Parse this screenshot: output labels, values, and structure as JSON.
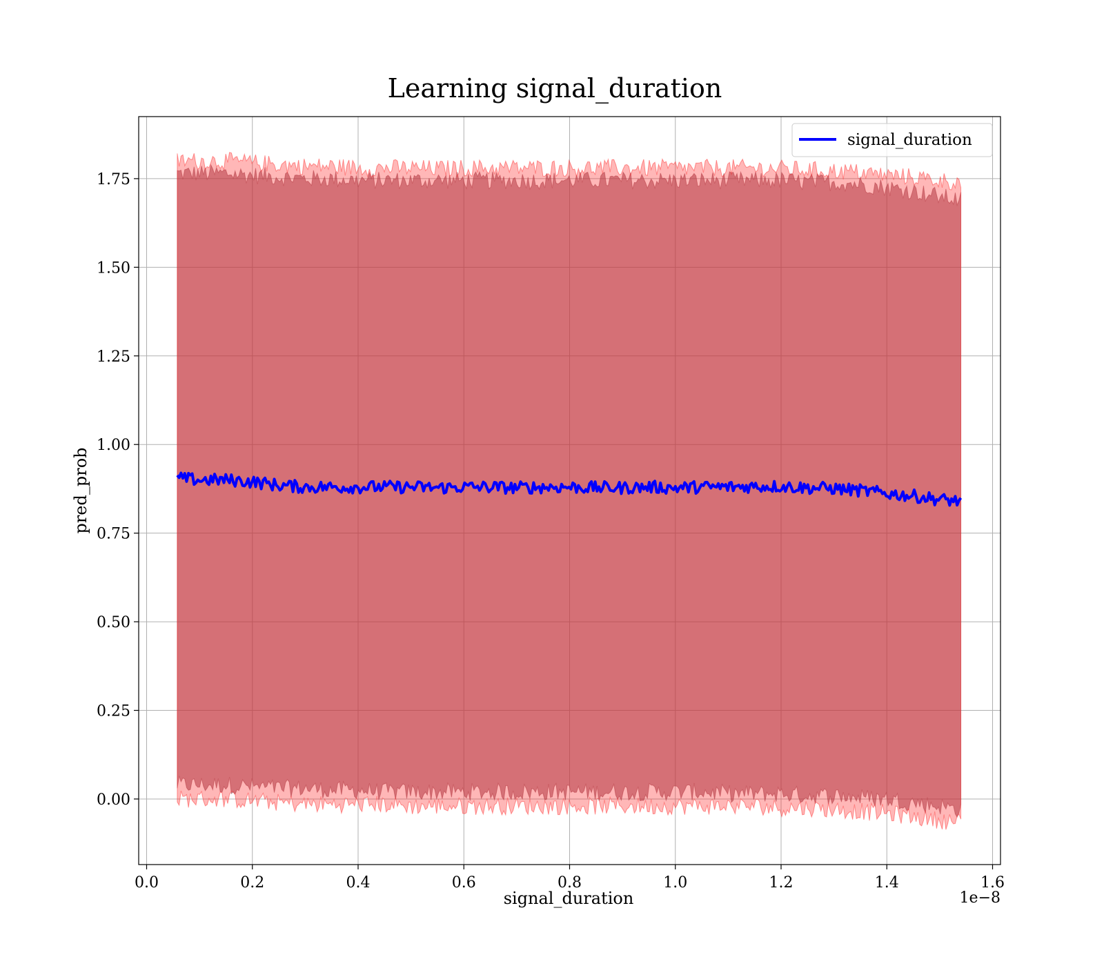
{
  "chart_data": {
    "type": "line",
    "title": "Learning signal_duration",
    "xlabel": "signal_duration",
    "ylabel": "pred_prob",
    "x_offset_text": "1e−8",
    "x_scale": 1e-08,
    "xlim": [
      -0.015,
      1.615
    ],
    "ylim": [
      -0.185,
      1.925
    ],
    "x_ticks": [
      0.0,
      0.2,
      0.4,
      0.6,
      0.8,
      1.0,
      1.2,
      1.4,
      1.6
    ],
    "x_tick_labels": [
      "0.0",
      "0.2",
      "0.4",
      "0.6",
      "0.8",
      "1.0",
      "1.2",
      "1.4",
      "1.6"
    ],
    "y_ticks": [
      0.0,
      0.25,
      0.5,
      0.75,
      1.0,
      1.25,
      1.5,
      1.75
    ],
    "y_tick_labels": [
      "0.00",
      "0.25",
      "0.50",
      "0.75",
      "1.00",
      "1.25",
      "1.50",
      "1.75"
    ],
    "grid": true,
    "legend": {
      "position": "top-right",
      "entries": [
        "signal_duration"
      ]
    },
    "x_range": [
      0.058,
      1.54
    ],
    "series": [
      {
        "name": "signal_duration",
        "color": "#0000ff",
        "x": [
          0.058,
          0.1,
          0.15,
          0.2,
          0.25,
          0.3,
          0.35,
          0.4,
          0.45,
          0.5,
          0.55,
          0.6,
          0.65,
          0.7,
          0.75,
          0.8,
          0.85,
          0.9,
          0.95,
          1.0,
          1.05,
          1.1,
          1.15,
          1.2,
          1.25,
          1.3,
          1.35,
          1.4,
          1.45,
          1.5,
          1.54
        ],
        "y": [
          0.905,
          0.9,
          0.9,
          0.895,
          0.885,
          0.88,
          0.88,
          0.88,
          0.88,
          0.88,
          0.878,
          0.88,
          0.88,
          0.878,
          0.88,
          0.88,
          0.878,
          0.878,
          0.88,
          0.878,
          0.88,
          0.88,
          0.882,
          0.882,
          0.878,
          0.876,
          0.87,
          0.862,
          0.855,
          0.845,
          0.84
        ]
      }
    ],
    "bands": [
      {
        "color": "#8b3a48",
        "upper": [
          1.765,
          1.765,
          1.765,
          1.76,
          1.755,
          1.75,
          1.75,
          1.745,
          1.745,
          1.745,
          1.745,
          1.745,
          1.745,
          1.745,
          1.745,
          1.745,
          1.745,
          1.745,
          1.745,
          1.745,
          1.745,
          1.745,
          1.745,
          1.745,
          1.74,
          1.74,
          1.735,
          1.725,
          1.715,
          1.7,
          1.69
        ],
        "lower": [
          0.04,
          0.04,
          0.04,
          0.035,
          0.03,
          0.03,
          0.025,
          0.025,
          0.02,
          0.02,
          0.02,
          0.02,
          0.02,
          0.02,
          0.02,
          0.02,
          0.02,
          0.02,
          0.02,
          0.02,
          0.02,
          0.015,
          0.015,
          0.015,
          0.01,
          0.01,
          0.005,
          0.0,
          -0.01,
          -0.02,
          -0.03
        ]
      },
      {
        "color": "#ff3030",
        "upper": [
          1.8,
          1.8,
          1.8,
          1.795,
          1.79,
          1.785,
          1.785,
          1.78,
          1.78,
          1.78,
          1.778,
          1.78,
          1.78,
          1.78,
          1.78,
          1.78,
          1.78,
          1.78,
          1.78,
          1.78,
          1.78,
          1.78,
          1.78,
          1.778,
          1.775,
          1.772,
          1.768,
          1.76,
          1.755,
          1.745,
          1.74
        ],
        "lower": [
          0.0,
          0.0,
          0.0,
          -0.005,
          -0.01,
          -0.015,
          -0.015,
          -0.015,
          -0.015,
          -0.02,
          -0.02,
          -0.02,
          -0.02,
          -0.02,
          -0.02,
          -0.02,
          -0.02,
          -0.02,
          -0.02,
          -0.02,
          -0.02,
          -0.02,
          -0.02,
          -0.025,
          -0.025,
          -0.03,
          -0.035,
          -0.04,
          -0.05,
          -0.06,
          -0.065
        ]
      }
    ]
  }
}
